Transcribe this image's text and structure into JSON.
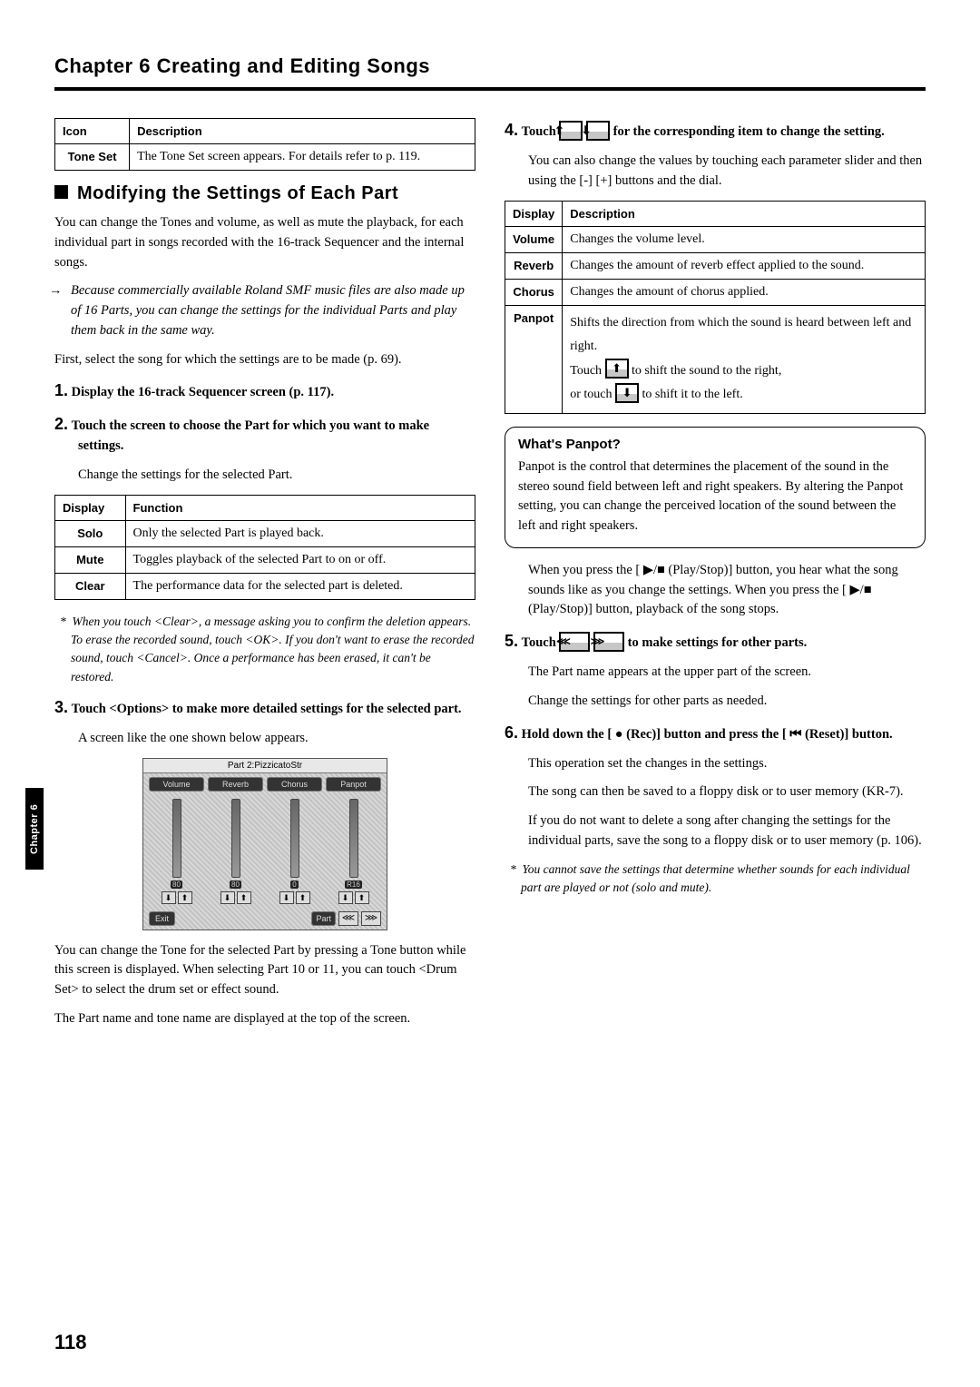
{
  "page": {
    "chapter_tab": "Chapter 6",
    "header": "Chapter 6 Creating and Editing Songs",
    "number": "118"
  },
  "left": {
    "icon_table": {
      "headers": [
        "Icon",
        "Description"
      ],
      "row_label": "Tone Set",
      "row_desc": "The Tone Set screen appears. For details refer to p. 119."
    },
    "section_title": "Modifying the Settings of Each Part",
    "intro": "You can change the Tones and volume, as well as mute the playback, for each individual part in songs recorded with the 16-track Sequencer and the internal songs.",
    "italic_note": "Because commercially available Roland SMF music files are also made up of 16 Parts, you can change the settings for the individual Parts and play them back in the same way.",
    "first_select": "First, select the song for which the settings are to be made (p. 69).",
    "step1": "Display the 16-track Sequencer screen (p. 117).",
    "step2": "Touch the screen to choose the Part for which you want to make settings.",
    "step2_sub": "Change the settings for the selected Part.",
    "func_table": {
      "headers": [
        "Display",
        "Function"
      ],
      "rows": [
        {
          "label": "Solo",
          "desc": "Only the selected Part is played back."
        },
        {
          "label": "Mute",
          "desc": "Toggles playback of the selected Part to on or off."
        },
        {
          "label": "Clear",
          "desc": "The performance data for the selected part is deleted."
        }
      ]
    },
    "clear_note": "When you touch <Clear>, a message asking you to confirm the deletion appears. To erase the recorded sound, touch <OK>. If you don't want to erase the recorded sound, touch <Cancel>. Once a performance has been erased, it can't be restored.",
    "step3": "Touch <Options> to make more detailed settings for the selected part.",
    "step3_sub": "A screen like the one shown below appears.",
    "screenshot": {
      "title": "Part 2:PizzicatoStr",
      "tabs": [
        "Volume",
        "Reverb",
        "Chorus",
        "Panpot"
      ],
      "values": [
        "80",
        "80",
        "0",
        "R16"
      ],
      "exit": "Exit",
      "part_label": "Part"
    },
    "after_ss_1": "You can change the Tone for the selected Part by pressing a Tone button while this screen is displayed. When selecting Part 10 or 11, you can touch <Drum Set> to select the drum set or effect sound.",
    "after_ss_2": "The Part name and tone name are displayed at the top of the screen."
  },
  "right": {
    "step4_a": "Touch ",
    "step4_b": " for the corresponding item to change the setting.",
    "step4_sub": "You can also change the values by touching each parameter slider and then using the [-] [+] buttons and the dial.",
    "param_table": {
      "headers": [
        "Display",
        "Description"
      ],
      "rows": [
        {
          "label": "Volume",
          "desc": "Changes the volume level."
        },
        {
          "label": "Reverb",
          "desc": "Changes the amount of reverb effect applied to the sound."
        },
        {
          "label": "Chorus",
          "desc": "Changes the amount of chorus applied."
        }
      ],
      "panpot_label": "Panpot",
      "panpot_line1": "Shifts the direction from which the sound is heard between left and right.",
      "panpot_line2a": "Touch ",
      "panpot_line2b": " to shift the sound to the right,",
      "panpot_line3a": "or touch ",
      "panpot_line3b": " to shift it to the left."
    },
    "callout": {
      "title": "What's Panpot?",
      "body": "Panpot is the control that determines the placement of the sound in the stereo sound field between left and right speakers. By altering the Panpot setting, you can change the perceived location of the sound between the left and right speakers."
    },
    "play_text": "When you press the [ ▶/■  (Play/Stop)] button, you hear what the song sounds like as you change the settings. When you press the [ ▶/■  (Play/Stop)] button, playback of the song stops.",
    "step5_a": "Touch ",
    "step5_b": " to make settings for other parts.",
    "step5_sub1": "The Part name appears at the upper part of the screen.",
    "step5_sub2": "Change the settings for other parts as needed.",
    "step6": "Hold down the [ ●  (Rec)] button and press the [ ⏮ (Reset)] button.",
    "step6_sub1": "This operation set the changes in the settings.",
    "step6_sub2": "The song can then be saved to a floppy disk or to user memory (KR-7).",
    "step6_sub3": "If you do not want to delete a song after changing the settings for the individual parts, save the song to a floppy disk or to user memory (p. 106).",
    "final_note": "You cannot save the settings that determine whether sounds for each individual part are played or not (solo and mute)."
  },
  "icons": {
    "up": "⬆",
    "down": "⬇",
    "left3": "⋘",
    "right3": "⋙"
  }
}
